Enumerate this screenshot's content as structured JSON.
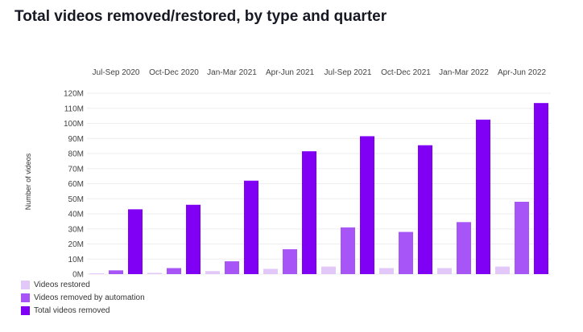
{
  "title": "Total videos removed/restored, by type and quarter",
  "colors": {
    "restored": "#e2c8f9",
    "automation": "#a855f7",
    "total": "#7f00f5",
    "grid": "#eeeeee",
    "text": "#444444"
  },
  "chart_data": {
    "type": "bar",
    "title": "Total videos removed/restored, by type and quarter",
    "ylabel": "Number of videos",
    "xlabel": "",
    "categories": [
      "Jul-Sep 2020",
      "Oct-Dec 2020",
      "Jan-Mar 2021",
      "Apr-Jun 2021",
      "Jul-Sep 2021",
      "Oct-Dec 2021",
      "Jan-Mar 2022",
      "Apr-Jun 2022"
    ],
    "yticks": [
      "0M",
      "10M",
      "20M",
      "30M",
      "40M",
      "50M",
      "60M",
      "70M",
      "80M",
      "90M",
      "100M",
      "110M",
      "120M"
    ],
    "ylim": [
      0,
      120
    ],
    "yunit": "M",
    "legend_position": "bottom-left",
    "series": [
      {
        "name": "Videos restored",
        "key": "restored",
        "values": [
          0.5,
          0.8,
          2.0,
          3.5,
          5.0,
          4.0,
          4.0,
          5.0
        ]
      },
      {
        "name": "Videos removed by automation",
        "key": "automation",
        "values": [
          2.5,
          4.0,
          8.5,
          16.5,
          31.0,
          28.0,
          34.5,
          48.0
        ]
      },
      {
        "name": "Total videos removed",
        "key": "total",
        "values": [
          43.0,
          46.0,
          62.0,
          81.5,
          91.5,
          85.5,
          102.5,
          113.5
        ]
      }
    ]
  }
}
